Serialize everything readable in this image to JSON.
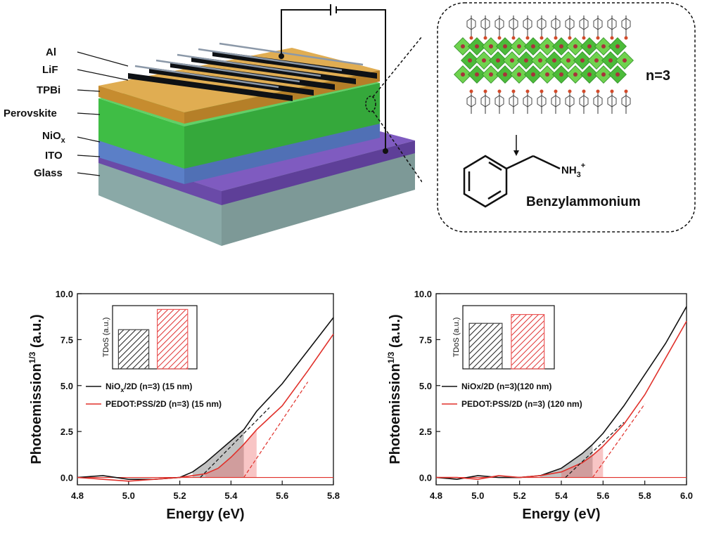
{
  "device": {
    "layers": [
      "Al",
      "LiF",
      "TPBi",
      "Perovskite",
      "NiO",
      "ITO",
      "Glass"
    ],
    "nio_subscript": "x",
    "colors": {
      "al": "#1e232a",
      "tpbi": "#d29a3a",
      "perovskite": "#3fbd45",
      "nio": "#5b7fc7",
      "ito": "#6a4aa8",
      "glass": "#8aa9a7"
    }
  },
  "inset_box": {
    "n_label": "n=3",
    "molecule_name": "Benzylammonium",
    "amine_label": "NH",
    "amine_sub": "3",
    "amine_sup": "+"
  },
  "chart_data": [
    {
      "type": "line",
      "xlabel": "Energy (eV)",
      "ylabel": "Photoemission",
      "ylabel_sup": "1/3",
      "ylabel_unit": " (a.u.)",
      "xlim": [
        4.8,
        5.8
      ],
      "ylim": [
        -0.4,
        10.0
      ],
      "xticks": [
        "4.8",
        "5.0",
        "5.2",
        "5.4",
        "5.6",
        "5.8"
      ],
      "yticks": [
        "0.0",
        "2.5",
        "5.0",
        "7.5",
        "10.0"
      ],
      "series": [
        {
          "name": "NiO",
          "name_sub": "x",
          "name_rest": "/2D (n=3) (15 nm)",
          "color": "#111111",
          "x": [
            4.8,
            4.9,
            5.0,
            5.1,
            5.2,
            5.25,
            5.3,
            5.35,
            5.4,
            5.45,
            5.5,
            5.6,
            5.7,
            5.8
          ],
          "y": [
            0.0,
            0.1,
            -0.1,
            -0.1,
            0.0,
            0.3,
            0.8,
            1.4,
            2.0,
            2.6,
            3.6,
            5.1,
            6.9,
            8.7
          ]
        },
        {
          "name": "PEDOT:PSS/2D (n=3) (15 nm)",
          "color": "#e0302a",
          "x": [
            4.8,
            4.9,
            5.0,
            5.1,
            5.2,
            5.3,
            5.35,
            5.4,
            5.45,
            5.5,
            5.6,
            5.7,
            5.8
          ],
          "y": [
            0.0,
            -0.1,
            -0.2,
            -0.1,
            0.0,
            0.2,
            0.5,
            1.1,
            1.8,
            2.6,
            3.9,
            5.8,
            7.8
          ]
        }
      ],
      "inset": {
        "ylabel": "TDoS (a.u.)",
        "values": [
          0.62,
          0.94
        ],
        "colors": [
          "#444444",
          "#ec5a5a"
        ]
      }
    },
    {
      "type": "line",
      "xlabel": "Energy (eV)",
      "ylabel": "Photoemission",
      "ylabel_sup": "1/3",
      "ylabel_unit": " (a.u.)",
      "xlim": [
        4.8,
        6.0
      ],
      "ylim": [
        -0.4,
        10.0
      ],
      "xticks": [
        "4.8",
        "5.0",
        "5.2",
        "5.4",
        "5.6",
        "5.8",
        "6.0"
      ],
      "yticks": [
        "0.0",
        "2.5",
        "5.0",
        "7.5",
        "10.0"
      ],
      "series": [
        {
          "name": "NiOx/2D (n=3)(120 nm)",
          "color": "#111111",
          "x": [
            4.8,
            4.9,
            5.0,
            5.1,
            5.2,
            5.3,
            5.4,
            5.45,
            5.5,
            5.55,
            5.6,
            5.7,
            5.8,
            5.9,
            6.0
          ],
          "y": [
            0.0,
            -0.1,
            0.1,
            0.0,
            0.0,
            0.1,
            0.5,
            0.9,
            1.3,
            1.8,
            2.4,
            3.9,
            5.6,
            7.3,
            9.3
          ]
        },
        {
          "name": "PEDOT:PSS/2D (n=3) (120 nm)",
          "color": "#e0302a",
          "x": [
            4.8,
            4.9,
            5.0,
            5.1,
            5.2,
            5.3,
            5.4,
            5.5,
            5.55,
            5.6,
            5.7,
            5.8,
            5.9,
            6.0
          ],
          "y": [
            0.0,
            0.0,
            -0.1,
            0.1,
            0.0,
            0.1,
            0.3,
            0.8,
            1.2,
            1.7,
            2.9,
            4.5,
            6.5,
            8.5
          ]
        }
      ],
      "inset": {
        "ylabel": "TDoS (a.u.)",
        "values": [
          0.72,
          0.86
        ],
        "colors": [
          "#444444",
          "#ec5a5a"
        ]
      }
    }
  ]
}
